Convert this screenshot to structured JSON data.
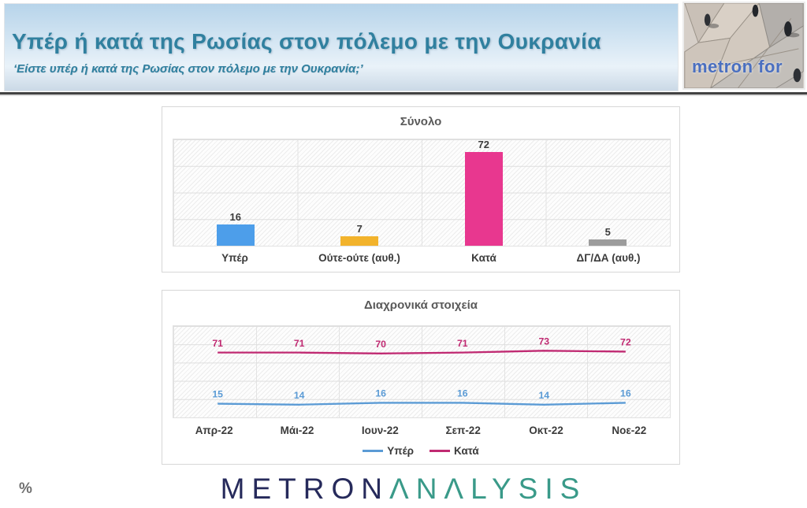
{
  "header": {
    "title": "Υπέρ ή κατά της Ρωσίας στον πόλεμο με την Ουκρανία",
    "subtitle": "‘Είστε υπέρ ή κατά της Ρωσίας στον πόλεμο με την Ουκρανία;’",
    "logo_text": "metron for",
    "title_color": "#30809F"
  },
  "chart_data": [
    {
      "type": "bar",
      "title": "Σύνολο",
      "categories": [
        "Υπέρ",
        "Ούτε-ούτε (αυθ.)",
        "Κατά",
        "ΔΓ/ΔΑ (αυθ.)"
      ],
      "values": [
        16,
        7,
        72,
        5
      ],
      "bar_colors": [
        "#4D9EEA",
        "#F2B32C",
        "#E8378F",
        "#9C9C9C"
      ],
      "ylim": [
        0,
        80
      ],
      "grid": true,
      "background": "hatched"
    },
    {
      "type": "line",
      "title": "Διαχρονικά στοιχεία",
      "x": [
        "Απρ-22",
        "Μάι-22",
        "Ιουν-22",
        "Σεπ-22",
        "Οκτ-22",
        "Νοε-22"
      ],
      "series": [
        {
          "name": "Υπέρ",
          "values": [
            15,
            14,
            16,
            16,
            14,
            16
          ],
          "color": "#5B9BD5"
        },
        {
          "name": "Κατά",
          "values": [
            71,
            71,
            70,
            71,
            73,
            72
          ],
          "color": "#C02A72"
        }
      ],
      "ylim": [
        0,
        100
      ],
      "grid": true,
      "legend_position": "bottom",
      "background": "hatched"
    }
  ],
  "footer": {
    "percent_label": "%",
    "logo_part1": "METRON",
    "logo_part2": "ΛNΛLYSIS"
  }
}
